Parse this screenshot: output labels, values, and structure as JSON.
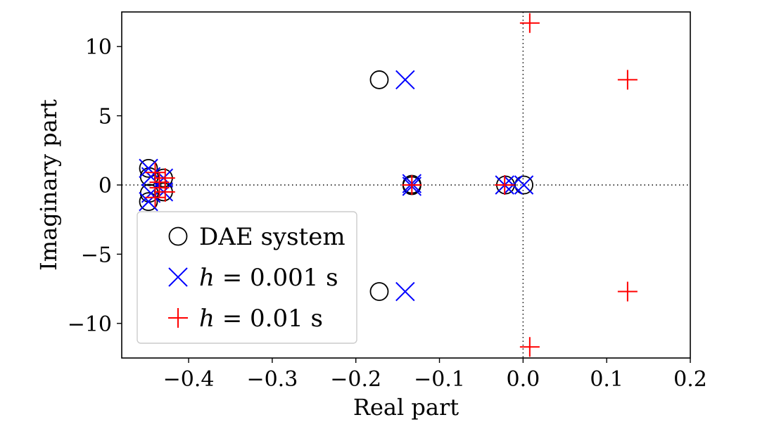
{
  "chart_data": {
    "type": "scatter",
    "title": "",
    "xlabel": "Real part",
    "ylabel": "Imaginary part",
    "xlim": [
      -0.48,
      0.2
    ],
    "ylim": [
      -12.5,
      12.5
    ],
    "xticks": [
      -0.4,
      -0.3,
      -0.2,
      -0.1,
      0.0,
      0.1,
      0.2
    ],
    "xtick_labels": [
      "−0.4",
      "−0.3",
      "−0.2",
      "−0.1",
      "0.0",
      "0.1",
      "0.2"
    ],
    "yticks": [
      -10,
      -5,
      0,
      5,
      10
    ],
    "ytick_labels": [
      "−10",
      "−5",
      "0",
      "5",
      "10"
    ],
    "reference_lines": {
      "x": 0,
      "y": 0,
      "style": "dotted"
    },
    "legend_position": "lower-left",
    "series": [
      {
        "name": "DAE system",
        "marker": "circle",
        "color": "#000000",
        "points": [
          [
            -0.448,
            1.2
          ],
          [
            -0.448,
            -1.2
          ],
          [
            -0.447,
            0.6
          ],
          [
            -0.447,
            -0.6
          ],
          [
            -0.43,
            0.5
          ],
          [
            -0.43,
            -0.5
          ],
          [
            -0.172,
            7.6
          ],
          [
            -0.172,
            -7.7
          ],
          [
            -0.133,
            0.05
          ],
          [
            -0.133,
            -0.05
          ],
          [
            -0.021,
            0.0
          ],
          [
            0.001,
            0.0
          ]
        ]
      },
      {
        "name": "h = 0.001 s",
        "legend_math": "h",
        "legend_rest": " = 0.001 s",
        "marker": "x",
        "color": "#0000ff",
        "points": [
          [
            -0.448,
            1.2
          ],
          [
            -0.448,
            -1.2
          ],
          [
            -0.445,
            0.6
          ],
          [
            -0.445,
            -0.6
          ],
          [
            -0.43,
            0.5
          ],
          [
            -0.43,
            -0.5
          ],
          [
            -0.141,
            7.6
          ],
          [
            -0.141,
            -7.7
          ],
          [
            -0.133,
            0.1
          ],
          [
            -0.133,
            -0.1
          ],
          [
            -0.022,
            0.0
          ],
          [
            -0.012,
            0.0
          ],
          [
            0.001,
            0.0
          ]
        ]
      },
      {
        "name": "h = 0.01 s",
        "legend_math": "h",
        "legend_rest": " = 0.01 s",
        "marker": "plus",
        "color": "#ff0000",
        "points": [
          [
            0.008,
            11.7
          ],
          [
            0.008,
            -11.7
          ],
          [
            0.125,
            7.6
          ],
          [
            0.125,
            -7.7
          ],
          [
            -0.44,
            0.9
          ],
          [
            -0.44,
            -0.9
          ],
          [
            -0.435,
            0.2
          ],
          [
            -0.435,
            -0.2
          ],
          [
            -0.428,
            0.5
          ],
          [
            -0.428,
            -0.5
          ],
          [
            -0.133,
            0.0
          ],
          [
            -0.022,
            0.0
          ]
        ]
      }
    ]
  },
  "colors": {
    "axis": "#000000",
    "legend_border": "#cccccc"
  }
}
